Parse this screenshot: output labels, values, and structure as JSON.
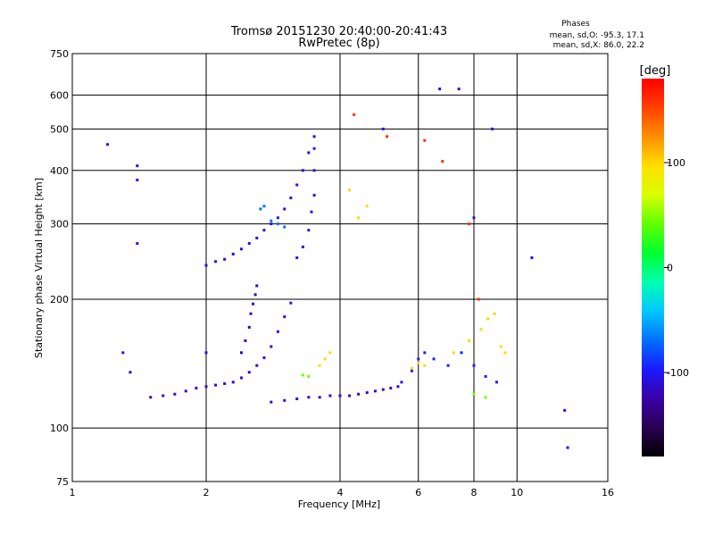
{
  "chart_data": {
    "type": "scatter",
    "title": "Tromsø 20151230 20:40:00-20:41:43",
    "subtitle": "RwPretec (8p)",
    "xlabel": "Frequency [MHz]",
    "ylabel": "Stationary phase Virtual Height [km]",
    "x_scale": "log2",
    "y_scale": "log",
    "xlim": [
      1,
      16
    ],
    "ylim": [
      75,
      750
    ],
    "x_ticks": [
      1,
      2,
      4,
      6,
      8,
      10,
      16
    ],
    "x_tick_labels": [
      "1",
      "2",
      "4",
      "6",
      "8",
      "10",
      "16"
    ],
    "y_ticks": [
      75,
      100,
      200,
      300,
      400,
      500,
      600,
      750
    ],
    "y_tick_labels": [
      "75",
      "100",
      "200",
      "300",
      "400",
      "500",
      "600",
      "750"
    ],
    "grid": true,
    "stats": {
      "title": "Phases",
      "line1": "mean, sd,O: -95.3, 17.1",
      "line2": "mean, sd,X:  86.0, 22.2"
    },
    "colorbar": {
      "label": "[deg]",
      "range": [
        -180,
        180
      ],
      "ticks": [
        100,
        0,
        -100
      ],
      "tick_labels": [
        "100",
        "0",
        "-100"
      ],
      "colors": [
        "#000000",
        "#2a0052",
        "#3a00a8",
        "#1a1aff",
        "#0070ff",
        "#00c8ff",
        "#00ffb0",
        "#00ff30",
        "#60ff00",
        "#d8ff00",
        "#ffe000",
        "#ff9000",
        "#ff4000",
        "#ff0000"
      ]
    },
    "series": [
      {
        "phase": -110,
        "points": [
          [
            1.5,
            118
          ],
          [
            1.6,
            119
          ],
          [
            1.7,
            120
          ],
          [
            1.8,
            122
          ],
          [
            1.9,
            124
          ],
          [
            2.0,
            125
          ],
          [
            2.1,
            126
          ],
          [
            2.2,
            127
          ],
          [
            2.3,
            128
          ],
          [
            2.4,
            131
          ],
          [
            2.5,
            135
          ],
          [
            2.6,
            140
          ],
          [
            2.7,
            146
          ],
          [
            2.8,
            155
          ],
          [
            2.9,
            168
          ],
          [
            3.0,
            182
          ],
          [
            3.1,
            196
          ]
        ]
      },
      {
        "phase": -120,
        "points": [
          [
            2.4,
            150
          ],
          [
            2.45,
            160
          ],
          [
            2.5,
            172
          ],
          [
            2.52,
            185
          ],
          [
            2.55,
            195
          ],
          [
            2.58,
            205
          ],
          [
            2.6,
            215
          ]
        ]
      },
      {
        "phase": -105,
        "points": [
          [
            2.0,
            240
          ],
          [
            2.1,
            245
          ],
          [
            2.2,
            248
          ],
          [
            2.3,
            255
          ],
          [
            2.4,
            262
          ],
          [
            2.5,
            270
          ],
          [
            2.6,
            278
          ],
          [
            2.7,
            290
          ],
          [
            2.8,
            300
          ],
          [
            2.9,
            310
          ],
          [
            3.0,
            325
          ],
          [
            3.1,
            345
          ],
          [
            3.2,
            370
          ],
          [
            3.3,
            400
          ],
          [
            3.4,
            440
          ],
          [
            3.5,
            480
          ]
        ]
      },
      {
        "phase": -70,
        "points": [
          [
            2.65,
            325
          ],
          [
            2.7,
            330
          ],
          [
            2.8,
            305
          ],
          [
            2.9,
            300
          ],
          [
            3.0,
            295
          ]
        ]
      },
      {
        "phase": -100,
        "points": [
          [
            3.2,
            250
          ],
          [
            3.3,
            265
          ],
          [
            3.4,
            290
          ],
          [
            3.45,
            320
          ],
          [
            3.5,
            350
          ],
          [
            3.5,
            400
          ],
          [
            3.5,
            450
          ]
        ]
      },
      {
        "phase": -110,
        "points": [
          [
            2.8,
            115
          ],
          [
            3.0,
            116
          ],
          [
            3.2,
            117
          ],
          [
            3.4,
            118
          ],
          [
            3.6,
            118
          ],
          [
            3.8,
            119
          ],
          [
            4.0,
            119
          ],
          [
            4.2,
            119
          ],
          [
            4.4,
            120
          ],
          [
            4.6,
            121
          ],
          [
            4.8,
            122
          ],
          [
            5.0,
            123
          ],
          [
            5.2,
            124
          ],
          [
            5.4,
            125
          ]
        ]
      },
      {
        "phase": -95,
        "points": [
          [
            5.5,
            128
          ],
          [
            5.8,
            136
          ],
          [
            6.0,
            145
          ],
          [
            6.2,
            150
          ],
          [
            6.5,
            145
          ],
          [
            7.0,
            140
          ],
          [
            7.5,
            150
          ],
          [
            8.0,
            140
          ],
          [
            8.5,
            132
          ],
          [
            9.0,
            128
          ]
        ]
      },
      {
        "phase": 100,
        "points": [
          [
            5.8,
            138
          ],
          [
            6.0,
            142
          ],
          [
            6.2,
            140
          ],
          [
            7.2,
            150
          ],
          [
            7.8,
            160
          ],
          [
            8.3,
            170
          ],
          [
            8.6,
            180
          ],
          [
            8.9,
            185
          ],
          [
            9.2,
            155
          ],
          [
            9.4,
            150
          ]
        ]
      },
      {
        "phase": 100,
        "points": [
          [
            3.6,
            140
          ],
          [
            3.7,
            145
          ],
          [
            3.8,
            150
          ],
          [
            4.2,
            360
          ],
          [
            4.4,
            310
          ],
          [
            4.6,
            330
          ]
        ]
      },
      {
        "phase": 45,
        "points": [
          [
            3.4,
            132
          ],
          [
            3.3,
            133
          ],
          [
            8.0,
            120
          ],
          [
            8.5,
            118
          ]
        ]
      },
      {
        "phase": 160,
        "points": [
          [
            4.3,
            540
          ],
          [
            5.1,
            480
          ],
          [
            6.2,
            470
          ],
          [
            6.8,
            420
          ],
          [
            7.8,
            300
          ],
          [
            8.2,
            200
          ]
        ]
      },
      {
        "phase": -110,
        "points": [
          [
            1.2,
            460
          ],
          [
            1.4,
            410
          ],
          [
            1.4,
            380
          ],
          [
            1.4,
            270
          ],
          [
            1.35,
            135
          ],
          [
            1.3,
            150
          ],
          [
            2.0,
            150
          ],
          [
            5.0,
            500
          ],
          [
            6.7,
            620
          ],
          [
            7.4,
            620
          ],
          [
            8.0,
            310
          ],
          [
            8.8,
            500
          ],
          [
            10.8,
            250
          ],
          [
            13.0,
            90
          ],
          [
            12.8,
            110
          ]
        ]
      }
    ]
  }
}
